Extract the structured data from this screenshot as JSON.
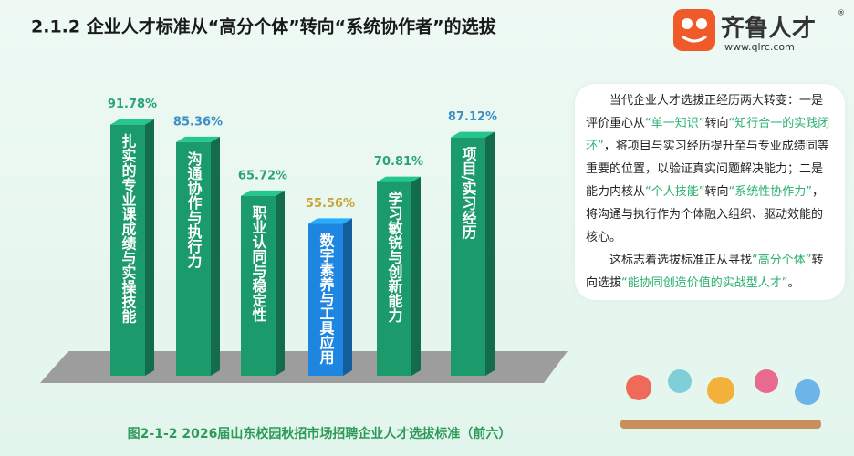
{
  "chart_data": {
    "type": "bar",
    "title": "2.1.2  企业人才标准从“高分个体”转向“系统协作者”的选拔",
    "caption": "图2-1-2  2026届山东校园秋招市场招聘企业人才选拔标准（前六）",
    "categories": [
      "扎实的专业课成绩与实操技能",
      "沟通协作与执行力",
      "职业认同与稳定性",
      "数字素养与工具应用",
      "学习敏锐与创新能力",
      "项目/实习经历"
    ],
    "values": [
      91.78,
      85.36,
      65.72,
      55.56,
      70.81,
      87.12
    ],
    "value_labels": [
      "91.78%",
      "85.36%",
      "65.72%",
      "55.56%",
      "70.81%",
      "87.12%"
    ],
    "colors": [
      "#1b9a6c",
      "#1b9a6c",
      "#1b9a6c",
      "#1e86e0",
      "#1b9a6c",
      "#1b9a6c"
    ],
    "label_colors": [
      "#2aa37a",
      "#3b8fc4",
      "#2aa37a",
      "#c9a43a",
      "#2aa37a",
      "#3b8fc4"
    ]
  },
  "summary": {
    "paragraphs": [
      [
        "当代企业人才选拔正经历两大转变：一是评价重心从",
        "“单一知识”",
        "转向",
        "“知行合一的实践闭环”",
        "，将项目与实习经历提升至与专业成绩同等重要的位置，以验证真实问题解决能力；二是能力内核从",
        "“个人技能”",
        "转向",
        "“系统性协作力”",
        "，将沟通与执行作为个体融入组织、驱动效能的核心。"
      ],
      [
        "这标志着选拔标准正从寻找",
        "“高分个体”",
        "转向选拔",
        "“能协同创造价值的实战型人才”",
        "。"
      ]
    ]
  },
  "logo": {
    "name": "齐鲁人才",
    "url": "www.qlrc.com",
    "mark": "®"
  }
}
